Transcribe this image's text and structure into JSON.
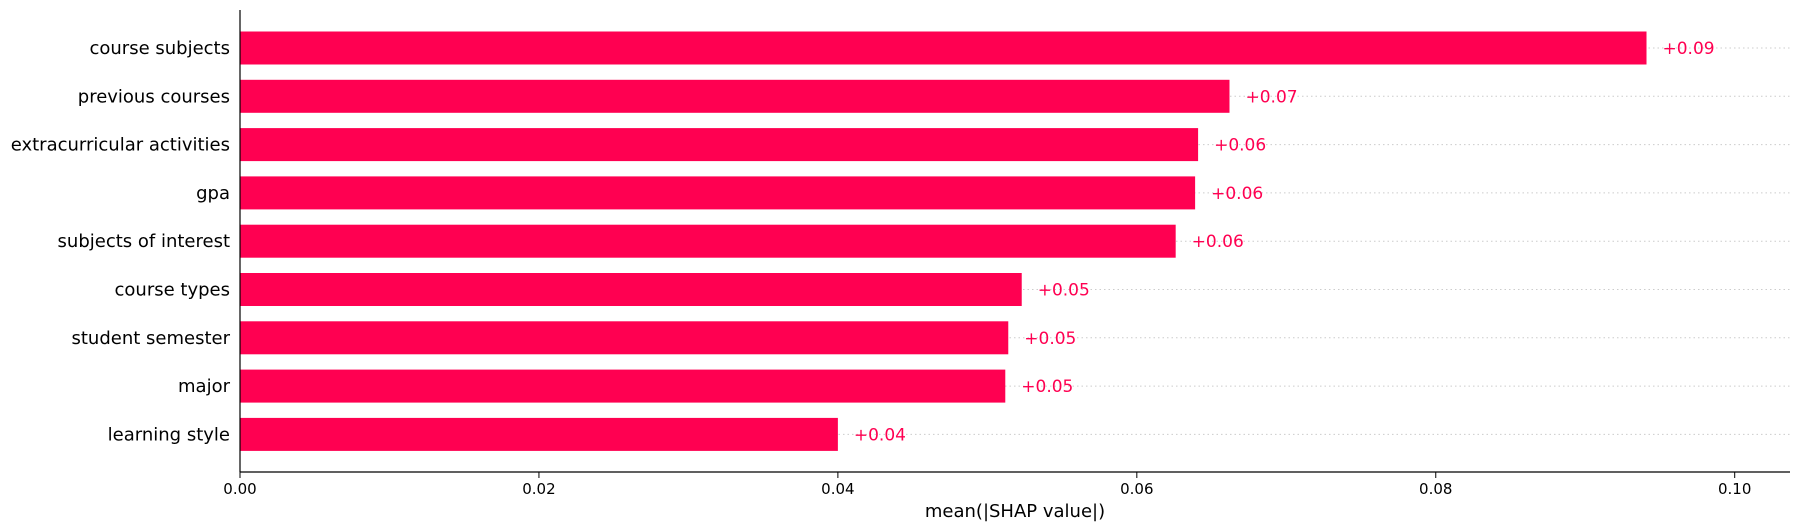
{
  "chart_data": {
    "type": "bar",
    "orientation": "horizontal",
    "categories": [
      "course subjects",
      "previous courses",
      "extracurricular activities",
      "gpa",
      "subjects of interest",
      "course types",
      "student semester",
      "major",
      "learning style"
    ],
    "values": [
      0.0941,
      0.0662,
      0.0641,
      0.0639,
      0.0626,
      0.0523,
      0.0514,
      0.0512,
      0.04
    ],
    "value_labels": [
      "+0.09",
      "+0.07",
      "+0.06",
      "+0.06",
      "+0.06",
      "+0.05",
      "+0.05",
      "+0.05",
      "+0.04"
    ],
    "xlabel": "mean(|SHAP value|)",
    "ylabel": "",
    "xlim": [
      0.0,
      0.1037
    ],
    "xticks": [
      "0.00",
      "0.02",
      "0.04",
      "0.06",
      "0.08",
      "0.10"
    ],
    "xtick_values": [
      0.0,
      0.02,
      0.04,
      0.06,
      0.08,
      0.1
    ],
    "grid": "dotted horizontal guide lines per row",
    "legend": "none",
    "colors": {
      "bar": "#ff0051",
      "label": "#ff0051",
      "axis": "#000000",
      "guide": "#cccccc"
    }
  }
}
